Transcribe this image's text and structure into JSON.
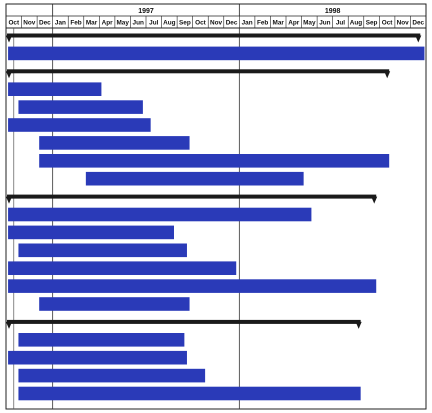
{
  "chart_data": {
    "type": "gantt",
    "title": "",
    "years": [
      "1997",
      "1998"
    ],
    "months": [
      "Oct",
      "Nov",
      "Dec",
      "Jan",
      "Feb",
      "Mar",
      "Apr",
      "May",
      "Jun",
      "Jul",
      "Aug",
      "Sep",
      "Oct",
      "Nov",
      "Dec",
      "Jan",
      "Feb",
      "Mar",
      "Apr",
      "May",
      "Jun",
      "Jul",
      "Aug",
      "Sep",
      "Oct",
      "Nov",
      "Dec"
    ],
    "time_range": [
      "1996-10-01",
      "1999-01-01"
    ],
    "grid": "vertical lines at each year boundary",
    "summary_color": "#1a1a1a",
    "bar_color": "#2a3ab8",
    "rows": [
      {
        "kind": "summary",
        "start": "1996-10-01",
        "end": "1998-12-20"
      },
      {
        "kind": "task",
        "start": "1996-10-05",
        "end": "1998-12-28"
      },
      {
        "kind": "summary",
        "start": "1996-10-01",
        "end": "1998-10-20"
      },
      {
        "kind": "task",
        "start": "1996-10-05",
        "end": "1997-04-05"
      },
      {
        "kind": "task",
        "start": "1996-10-25",
        "end": "1997-06-25"
      },
      {
        "kind": "task",
        "start": "1996-10-05",
        "end": "1997-07-10"
      },
      {
        "kind": "task",
        "start": "1996-12-05",
        "end": "1997-09-25"
      },
      {
        "kind": "task",
        "start": "1996-12-05",
        "end": "1998-10-20"
      },
      {
        "kind": "task",
        "start": "1997-03-05",
        "end": "1998-05-05"
      },
      {
        "kind": "summary",
        "start": "1996-10-01",
        "end": "1998-09-25"
      },
      {
        "kind": "task",
        "start": "1996-10-05",
        "end": "1998-05-20"
      },
      {
        "kind": "task",
        "start": "1996-10-05",
        "end": "1997-08-25"
      },
      {
        "kind": "task",
        "start": "1996-10-25",
        "end": "1997-09-20"
      },
      {
        "kind": "task",
        "start": "1996-10-05",
        "end": "1997-12-25"
      },
      {
        "kind": "task",
        "start": "1996-10-05",
        "end": "1998-09-25"
      },
      {
        "kind": "task",
        "start": "1996-12-05",
        "end": "1997-09-25"
      },
      {
        "kind": "summary",
        "start": "1996-10-01",
        "end": "1998-08-25"
      },
      {
        "kind": "task",
        "start": "1996-10-25",
        "end": "1997-09-15"
      },
      {
        "kind": "task",
        "start": "1996-10-05",
        "end": "1997-09-20"
      },
      {
        "kind": "task",
        "start": "1996-10-25",
        "end": "1997-10-25"
      },
      {
        "kind": "task",
        "start": "1996-10-25",
        "end": "1998-08-25"
      }
    ]
  }
}
